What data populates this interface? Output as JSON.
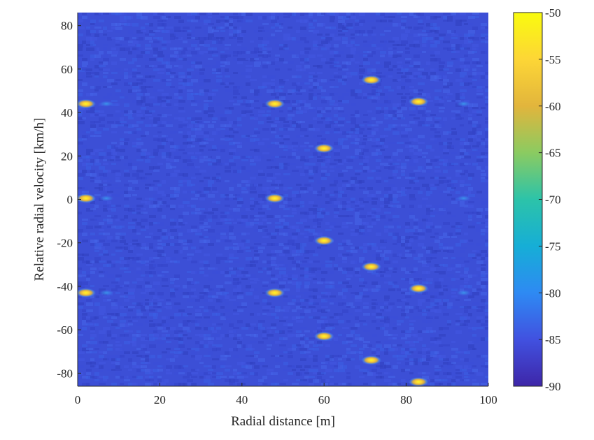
{
  "chart_data": {
    "type": "heatmap",
    "title": "",
    "xlabel": "Radial distance [m]",
    "ylabel": "Relative radial velocity [km/h]",
    "xlim": [
      0,
      100
    ],
    "ylim": [
      -86,
      86
    ],
    "x_ticks": [
      0,
      20,
      40,
      60,
      80,
      100
    ],
    "y_ticks": [
      -80,
      -60,
      -40,
      -20,
      0,
      20,
      40,
      60,
      80
    ],
    "colorbar": {
      "range": [
        -90,
        -50
      ],
      "ticks": [
        -90,
        -85,
        -80,
        -75,
        -70,
        -65,
        -60,
        -55,
        -50
      ],
      "colormap": "parula",
      "colors": [
        "#3e26a8",
        "#4151e0",
        "#2e8af3",
        "#16aed6",
        "#2cc3a9",
        "#8bcb61",
        "#e2b53c",
        "#fdd636",
        "#f9fb0e"
      ]
    },
    "background_level": -86,
    "peaks": [
      {
        "x": 2,
        "y": 44,
        "value": -52
      },
      {
        "x": 48,
        "y": 44,
        "value": -52
      },
      {
        "x": 71.5,
        "y": 55,
        "value": -54
      },
      {
        "x": 83,
        "y": 45,
        "value": -54
      },
      {
        "x": 60,
        "y": 23.5,
        "value": -54
      },
      {
        "x": 2,
        "y": 0.5,
        "value": -52
      },
      {
        "x": 48,
        "y": 0.5,
        "value": -52
      },
      {
        "x": 60,
        "y": -19,
        "value": -54
      },
      {
        "x": 71.5,
        "y": -31,
        "value": -54
      },
      {
        "x": 83,
        "y": -41,
        "value": -55
      },
      {
        "x": 2,
        "y": -43,
        "value": -54
      },
      {
        "x": 48,
        "y": -43,
        "value": -53
      },
      {
        "x": 60,
        "y": -63,
        "value": -54
      },
      {
        "x": 71.5,
        "y": -74,
        "value": -54
      },
      {
        "x": 83,
        "y": -84,
        "value": -54
      }
    ],
    "weak_reflections": [
      {
        "x": 7,
        "y": 44,
        "value": -80
      },
      {
        "x": 94,
        "y": 44,
        "value": -80
      },
      {
        "x": 7,
        "y": 0.5,
        "value": -80
      },
      {
        "x": 94,
        "y": 0.5,
        "value": -80
      },
      {
        "x": 7,
        "y": -43,
        "value": -80
      },
      {
        "x": 94,
        "y": -43,
        "value": -80
      }
    ]
  }
}
